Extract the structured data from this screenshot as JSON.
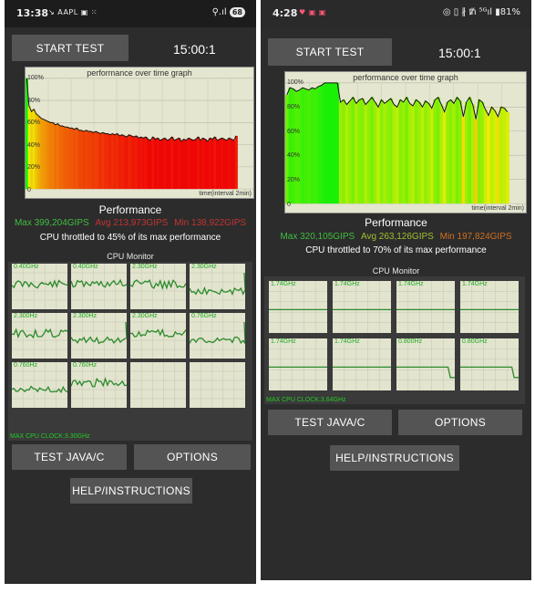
{
  "left": {
    "status": {
      "time": "13:38",
      "notifications": "↘ AAPL ▣ ⁙",
      "system": "⚲.ıl",
      "battery": "68"
    },
    "start_label": "START TEST",
    "timer": "15:00:1",
    "graph": {
      "title": "performance over time graph",
      "y_ticks": [
        "100%",
        "80%",
        "60%",
        "40%",
        "20%",
        "0"
      ],
      "x_note": "time(interval 2min)"
    },
    "performance_title": "Performance",
    "stats": {
      "max": "Max 399,204GIPS",
      "avg": "Avg 213,973GIPS",
      "min": "Min 138,922GIPS"
    },
    "throttle": "CPU throttled to 45% of its max performance",
    "cpu_monitor_title": "CPU Monitor",
    "cores": [
      {
        "label": "0.40GHz"
      },
      {
        "label": "0.40GHz"
      },
      {
        "label": "2.30GHz"
      },
      {
        "label": "2.30GHz"
      },
      {
        "label": "2.300Hz"
      },
      {
        "label": "2.300Hz"
      },
      {
        "label": "2.30GHz"
      },
      {
        "label": "0.76GHz"
      },
      {
        "label": "0.760Hz"
      },
      {
        "label": "0.760Hz"
      },
      {
        "label": ""
      },
      {
        "label": ""
      }
    ],
    "max_cpu_clock": "MAX CPU CLOCK:3.30GHz",
    "test_label": "TEST JAVA/C",
    "options_label": "OPTIONS",
    "help_label": "HELP/INSTRUCTIONS",
    "chart_data": {
      "type": "area",
      "title": "performance over time graph",
      "xlabel": "time(interval 2min)",
      "ylabel": "",
      "ylim": [
        0,
        100
      ],
      "y_ticks": [
        "100%",
        "80%",
        "60%",
        "40%",
        "20%",
        "0"
      ],
      "grid": true,
      "series": [
        {
          "values": [
            100,
            75,
            70,
            72,
            68,
            66,
            64,
            63,
            62,
            61,
            60,
            60,
            58,
            59,
            57,
            57,
            56,
            56,
            55,
            55,
            54,
            55,
            53,
            53,
            52,
            53,
            52,
            52,
            51,
            52,
            51,
            50,
            51,
            50,
            50,
            49,
            50,
            49,
            50,
            48,
            49,
            48,
            47,
            49,
            48,
            47,
            48,
            46,
            47,
            46,
            47,
            45,
            44,
            47,
            45,
            46,
            44,
            45,
            46,
            44,
            45,
            47,
            44,
            45,
            46,
            43,
            45,
            44,
            46,
            45,
            44,
            45,
            47,
            44,
            46,
            45,
            43,
            46,
            45,
            47,
            44,
            45,
            46,
            45,
            44,
            46,
            45,
            44,
            48
          ]
        }
      ]
    }
  },
  "right": {
    "status": {
      "time": "4:28",
      "notifications": "♥ ▣ ▣",
      "system": "◎ ▯ ∦ ᵺ ⁵ᴳıl",
      "battery": "▮81%"
    },
    "start_label": "START TEST",
    "timer": "15:00:1",
    "graph": {
      "title": "performance over time graph",
      "y_ticks": [
        "100%",
        "80%",
        "60%",
        "40%",
        "20%",
        "0"
      ],
      "x_note": "time(interval 2min)"
    },
    "performance_title": "Performance",
    "stats": {
      "max": "Max 320,105GIPS",
      "avg": "Avg 263,126GIPS",
      "min": "Min 197,824GIPS"
    },
    "throttle": "CPU throttled to 70% of its max performance",
    "cpu_monitor_title": "CPU Monitor",
    "cores": [
      {
        "label": "1.74GHz"
      },
      {
        "label": "1.74GHz"
      },
      {
        "label": "1.74GHz"
      },
      {
        "label": "1.74GHz"
      },
      {
        "label": "1.74GHz"
      },
      {
        "label": "1.74GHz"
      },
      {
        "label": "0.800Hz"
      },
      {
        "label": "0.80GHz"
      }
    ],
    "max_cpu_clock": "MAX CPU CLOCK:3.64GHz",
    "test_label": "TEST JAVA/C",
    "options_label": "OPTIONS",
    "help_label": "HELP/INSTRUCTIONS",
    "chart_data": {
      "type": "area",
      "title": "performance over time graph",
      "xlabel": "time(interval 2min)",
      "ylabel": "",
      "ylim": [
        0,
        100
      ],
      "y_ticks": [
        "100%",
        "80%",
        "60%",
        "40%",
        "20%",
        "0"
      ],
      "grid": true,
      "series": [
        {
          "values": [
            90,
            96,
            95,
            93,
            94,
            96,
            95,
            94,
            96,
            95,
            97,
            98,
            100,
            100,
            100,
            100,
            100,
            84,
            86,
            82,
            85,
            88,
            83,
            86,
            87,
            82,
            85,
            88,
            84,
            80,
            86,
            83,
            85,
            87,
            82,
            80,
            86,
            84,
            88,
            83,
            81,
            86,
            84,
            80,
            85,
            83,
            79,
            86,
            88,
            82,
            76,
            84,
            86,
            83,
            88,
            85,
            72,
            84,
            88,
            82,
            70,
            86,
            84,
            78,
            73,
            80,
            77,
            72,
            80,
            79,
            76
          ]
        }
      ]
    }
  }
}
